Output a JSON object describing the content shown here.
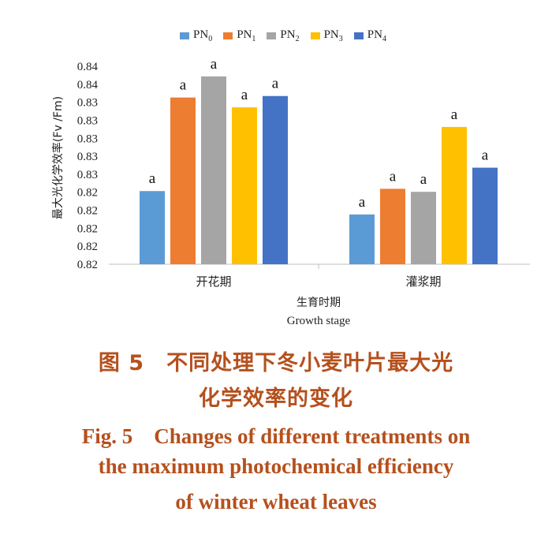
{
  "chart_data": {
    "type": "bar",
    "ylabel": "最大光化学效率(Fv /Fm)",
    "xlabel_cn": "生育时期",
    "xlabel_en": "Growth stage",
    "categories": [
      "开花期",
      "灌浆期"
    ],
    "y_tick_labels": [
      "0.82",
      "0.82",
      "0.82",
      "0.82",
      "0.82",
      "0.83",
      "0.83",
      "0.83",
      "0.83",
      "0.83",
      "0.84",
      "0.84"
    ],
    "ylim": [
      0.8175,
      0.845
    ],
    "grid": false,
    "legend_position": "top",
    "series": [
      {
        "name": "PN0",
        "base": "PN",
        "sub": "0",
        "color": "#5b9bd5",
        "values": [
          0.8272,
          0.8241
        ],
        "labels": [
          "a",
          "a"
        ]
      },
      {
        "name": "PN1",
        "base": "PN",
        "sub": "1",
        "color": "#ed7d31",
        "values": [
          0.8396,
          0.8275
        ],
        "labels": [
          "a",
          "a"
        ]
      },
      {
        "name": "PN2",
        "base": "PN",
        "sub": "2",
        "color": "#a5a5a5",
        "values": [
          0.8424,
          0.8271
        ],
        "labels": [
          "a",
          "a"
        ]
      },
      {
        "name": "PN3",
        "base": "PN",
        "sub": "3",
        "color": "#ffc000",
        "values": [
          0.8383,
          0.8357
        ],
        "labels": [
          "a",
          "a"
        ]
      },
      {
        "name": "PN4",
        "base": "PN",
        "sub": "4",
        "color": "#4472c4",
        "values": [
          0.8398,
          0.8303
        ],
        "labels": [
          "a",
          "a"
        ]
      }
    ]
  },
  "caption": {
    "cn_line1": "图 5　不同处理下冬小麦叶片最大光",
    "cn_line2": "化学效率的变化",
    "en_line1": "Fig. 5　Changes of different treatments on",
    "en_line2": "the maximum photochemical efficiency",
    "en_line3": "of winter wheat leaves"
  }
}
